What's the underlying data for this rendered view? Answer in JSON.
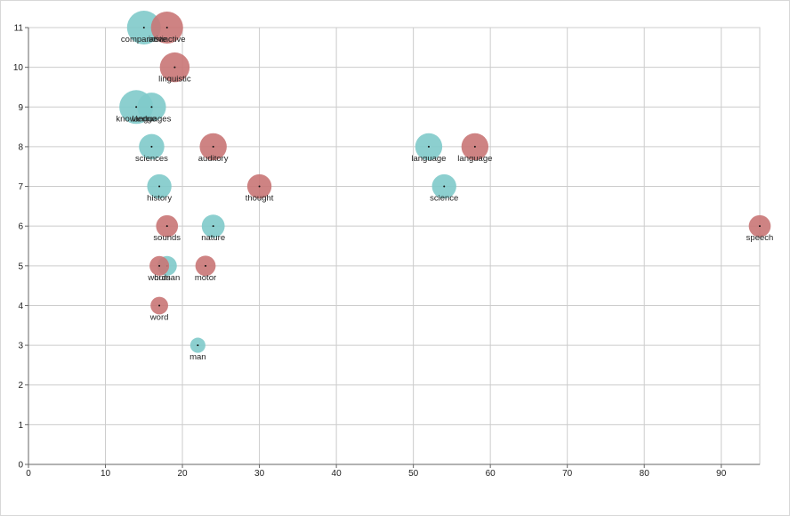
{
  "chart_data": {
    "type": "scatter",
    "title": "",
    "xlabel": "",
    "ylabel": "",
    "xlim": [
      0,
      95
    ],
    "ylim": [
      0,
      11
    ],
    "x_ticks": [
      0,
      10,
      20,
      30,
      40,
      50,
      60,
      70,
      80,
      90
    ],
    "y_ticks": [
      0,
      1,
      2,
      3,
      4,
      5,
      6,
      7,
      8,
      9,
      10,
      11
    ],
    "grid": true,
    "legend": "none",
    "bubble_size": "relative weight",
    "series": [
      {
        "color": "#7fcaca",
        "points": [
          {
            "label": "comparative",
            "x": 15,
            "y": 11,
            "size": 1.0
          },
          {
            "label": "knowledge",
            "x": 14,
            "y": 9,
            "size": 1.0
          },
          {
            "label": "languages",
            "x": 16,
            "y": 9,
            "size": 0.85
          },
          {
            "label": "sciences",
            "x": 16,
            "y": 8,
            "size": 0.75
          },
          {
            "label": "history",
            "x": 17,
            "y": 7,
            "size": 0.72
          },
          {
            "label": "nature",
            "x": 24,
            "y": 6,
            "size": 0.68
          },
          {
            "label": "human",
            "x": 18,
            "y": 5,
            "size": 0.58
          },
          {
            "label": "man",
            "x": 22,
            "y": 3,
            "size": 0.45
          },
          {
            "label": "language",
            "x": 52,
            "y": 8,
            "size": 0.8
          },
          {
            "label": "science",
            "x": 54,
            "y": 7,
            "size": 0.72
          }
        ]
      },
      {
        "color": "#c97676",
        "points": [
          {
            "label": "instinctive",
            "x": 18,
            "y": 11,
            "size": 0.95
          },
          {
            "label": "linguistic",
            "x": 19,
            "y": 10,
            "size": 0.88
          },
          {
            "label": "auditory",
            "x": 24,
            "y": 8,
            "size": 0.8
          },
          {
            "label": "thought",
            "x": 30,
            "y": 7,
            "size": 0.72
          },
          {
            "label": "sounds",
            "x": 18,
            "y": 6,
            "size": 0.65
          },
          {
            "label": "words",
            "x": 17,
            "y": 5,
            "size": 0.58
          },
          {
            "label": "motor",
            "x": 23,
            "y": 5,
            "size": 0.6
          },
          {
            "label": "word",
            "x": 17,
            "y": 4,
            "size": 0.52
          },
          {
            "label": "language",
            "x": 58,
            "y": 8,
            "size": 0.8
          },
          {
            "label": "speech",
            "x": 95,
            "y": 6,
            "size": 0.65
          }
        ]
      }
    ]
  }
}
